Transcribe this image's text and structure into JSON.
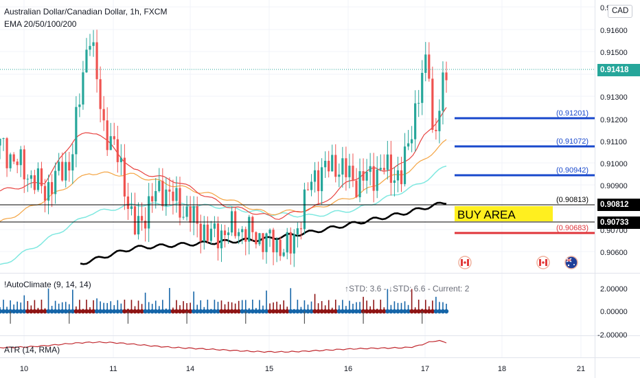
{
  "header": {
    "symbol": "Australian Dollar/Canadian Dollar, 1h, FXCM",
    "ema_label": "EMA 20/50/100/200",
    "currency": "CAD"
  },
  "price_axis": {
    "ticks": [
      "0.9",
      "0.91600",
      "0.91500",
      "0.91300",
      "0.91200",
      "0.91100",
      "0.91000",
      "0.90900",
      "0.90700",
      "0.90600"
    ],
    "current_price": "0.91418",
    "tag_upper": "0.90812",
    "tag_lower": "0.90733"
  },
  "levels": [
    {
      "label": "(0.91201)",
      "color": "#1848cc"
    },
    {
      "label": "(0.91072)",
      "color": "#1848cc"
    },
    {
      "label": "(0.90942)",
      "color": "#1848cc"
    },
    {
      "label": "(0.90813)",
      "color": "#000000"
    },
    {
      "label": "(0.90683)",
      "color": "#e0343a"
    }
  ],
  "buy_area": {
    "label": "BUY AREA",
    "color": "#ffef1f"
  },
  "indicators": {
    "autoclimate_label": "!AutoClimate (9, 14, 14)",
    "autoclimate_stats": "↑STD: 3.6 - ↓STD: 6.6 - Current: 2",
    "autoclimate_ticks": [
      "2.00000",
      "0.00000",
      "-2.00000"
    ],
    "atr_label": "ATR (14, RMA)"
  },
  "time_axis": {
    "labels": [
      "10",
      "11",
      "14",
      "15",
      "16",
      "17",
      "18",
      "21"
    ]
  },
  "colors": {
    "up": "#26a69a",
    "down": "#ef5350",
    "ema20": "#e8423f",
    "ema50": "#f4a340",
    "ema100": "#7fe8e0",
    "ema200": "#000000",
    "osc_up": "#1565a8",
    "osc_down": "#8e1414"
  },
  "chart_data": {
    "type": "candlestick",
    "title": "Australian Dollar/Canadian Dollar, 1h, FXCM",
    "interval": "1h",
    "x_labels": [
      "10",
      "11",
      "14",
      "15",
      "16",
      "17",
      "18",
      "21"
    ],
    "ylim": [
      0.9052,
      0.9172
    ],
    "series": [
      {
        "name": "EMA 20",
        "keypoints": [
          [
            0,
            0.9088
          ],
          [
            0.1,
            0.9092
          ],
          [
            0.17,
            0.9112
          ],
          [
            0.22,
            0.9114
          ],
          [
            0.3,
            0.9097
          ],
          [
            0.4,
            0.9092
          ],
          [
            0.5,
            0.9082
          ],
          [
            0.62,
            0.9076
          ],
          [
            0.72,
            0.9082
          ],
          [
            0.78,
            0.9092
          ],
          [
            0.84,
            0.9098
          ],
          [
            0.88,
            0.9097
          ],
          [
            0.93,
            0.9105
          ],
          [
            0.95,
            0.9112
          ],
          [
            1.0,
            0.9124
          ]
        ]
      },
      {
        "name": "EMA 50",
        "keypoints": [
          [
            0,
            0.9074
          ],
          [
            0.1,
            0.9084
          ],
          [
            0.2,
            0.9096
          ],
          [
            0.3,
            0.9095
          ],
          [
            0.4,
            0.909
          ],
          [
            0.5,
            0.9085
          ],
          [
            0.6,
            0.9078
          ],
          [
            0.7,
            0.908
          ],
          [
            0.8,
            0.9086
          ],
          [
            0.86,
            0.9093
          ],
          [
            0.92,
            0.9097
          ],
          [
            1.0,
            0.911
          ]
        ]
      },
      {
        "name": "EMA 100",
        "keypoints": [
          [
            0,
            0.9055
          ],
          [
            0.1,
            0.9066
          ],
          [
            0.2,
            0.9078
          ],
          [
            0.3,
            0.9082
          ],
          [
            0.4,
            0.9082
          ],
          [
            0.5,
            0.9081
          ],
          [
            0.6,
            0.9078
          ],
          [
            0.7,
            0.9077
          ],
          [
            0.8,
            0.908
          ],
          [
            0.88,
            0.9086
          ],
          [
            0.94,
            0.9091
          ],
          [
            1.0,
            0.9099
          ]
        ]
      },
      {
        "name": "EMA 200",
        "keypoints": [
          [
            0.18,
            0.9056
          ],
          [
            0.3,
            0.9063
          ],
          [
            0.45,
            0.9065
          ],
          [
            0.6,
            0.9067
          ],
          [
            0.7,
            0.907
          ],
          [
            0.8,
            0.9074
          ],
          [
            0.9,
            0.9078
          ],
          [
            1.0,
            0.9083
          ]
        ]
      },
      {
        "name": "Price",
        "keypoints": [
          [
            0,
            0.9108
          ],
          [
            0.05,
            0.9098
          ],
          [
            0.1,
            0.9088
          ],
          [
            0.16,
            0.9102
          ],
          [
            0.2,
            0.916
          ],
          [
            0.23,
            0.9118
          ],
          [
            0.27,
            0.91
          ],
          [
            0.3,
            0.907
          ],
          [
            0.36,
            0.909
          ],
          [
            0.42,
            0.9078
          ],
          [
            0.47,
            0.9068
          ],
          [
            0.53,
            0.9072
          ],
          [
            0.6,
            0.9066
          ],
          [
            0.65,
            0.9062
          ],
          [
            0.7,
            0.9094
          ],
          [
            0.75,
            0.91
          ],
          [
            0.8,
            0.9092
          ],
          [
            0.86,
            0.9098
          ],
          [
            0.9,
            0.9094
          ],
          [
            0.93,
            0.9124
          ],
          [
            0.96,
            0.9148
          ],
          [
            0.97,
            0.911
          ],
          [
            1.0,
            0.914
          ]
        ]
      }
    ]
  }
}
